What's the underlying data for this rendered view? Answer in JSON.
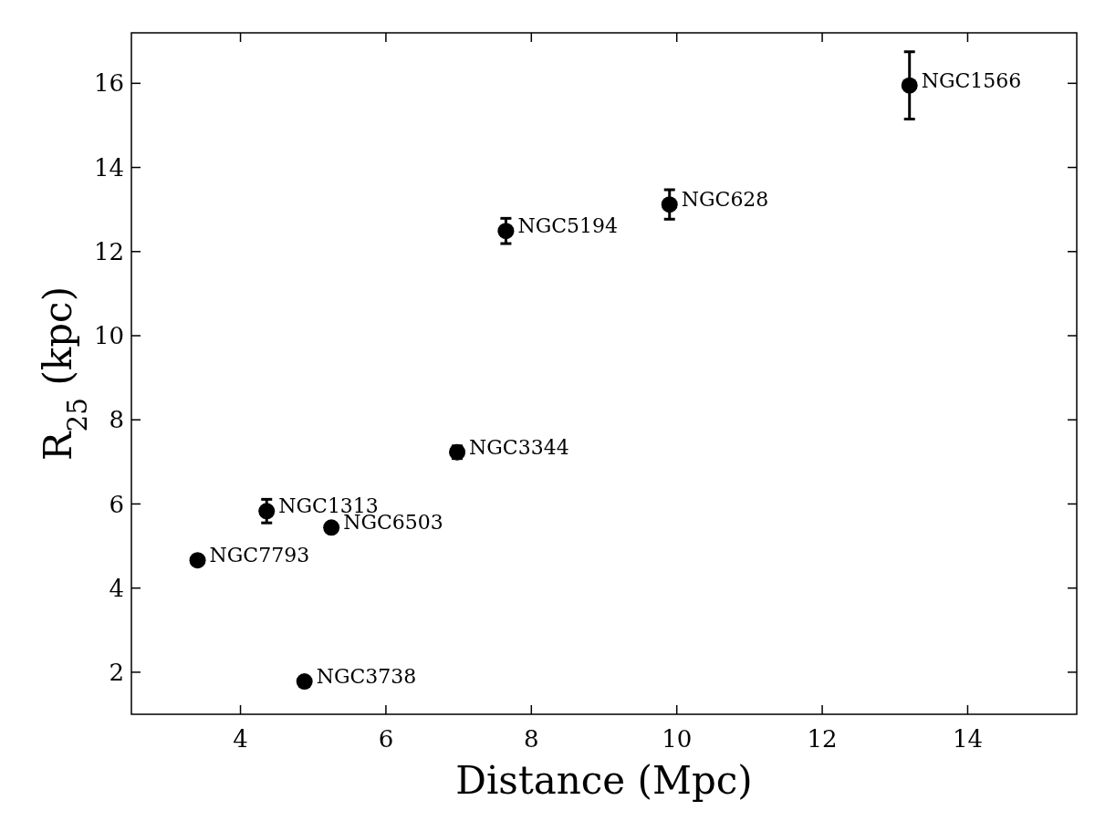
{
  "chart_data": {
    "type": "scatter",
    "xlabel": "Distance (Mpc)",
    "ylabel": "R$_{25}$ (kpc)",
    "x": [
      13.2,
      9.9,
      7.65,
      6.98,
      4.36,
      5.25,
      3.41,
      4.88
    ],
    "values": [
      15.95,
      13.12,
      12.49,
      7.23,
      5.83,
      5.44,
      4.66,
      1.78
    ],
    "errors": [
      0.8,
      0.35,
      0.3,
      0.15,
      0.28,
      null,
      null,
      null
    ],
    "color": "#000000",
    "marker": "circle",
    "grid": false,
    "xlim": [
      2.5,
      15.5
    ],
    "xticks": [
      4,
      6,
      8,
      10,
      12,
      14
    ],
    "ylim": [
      1,
      17.2
    ],
    "yticks": [
      2,
      4,
      6,
      8,
      10,
      12,
      14,
      16
    ],
    "annotations": [
      {
        "text": "NGC1566",
        "x": 13.2,
        "y": 15.95
      },
      {
        "text": "NGC628",
        "x": 9.9,
        "y": 13.12
      },
      {
        "text": "NGC5194",
        "x": 7.65,
        "y": 12.49
      },
      {
        "text": "NGC3344",
        "x": 6.98,
        "y": 7.23
      },
      {
        "text": "NGC1313",
        "x": 4.36,
        "y": 5.83
      },
      {
        "text": "NGC6503",
        "x": 5.25,
        "y": 5.44
      },
      {
        "text": "NGC7793",
        "x": 3.41,
        "y": 4.66
      },
      {
        "text": "NGC3738",
        "x": 4.88,
        "y": 1.78
      }
    ]
  }
}
